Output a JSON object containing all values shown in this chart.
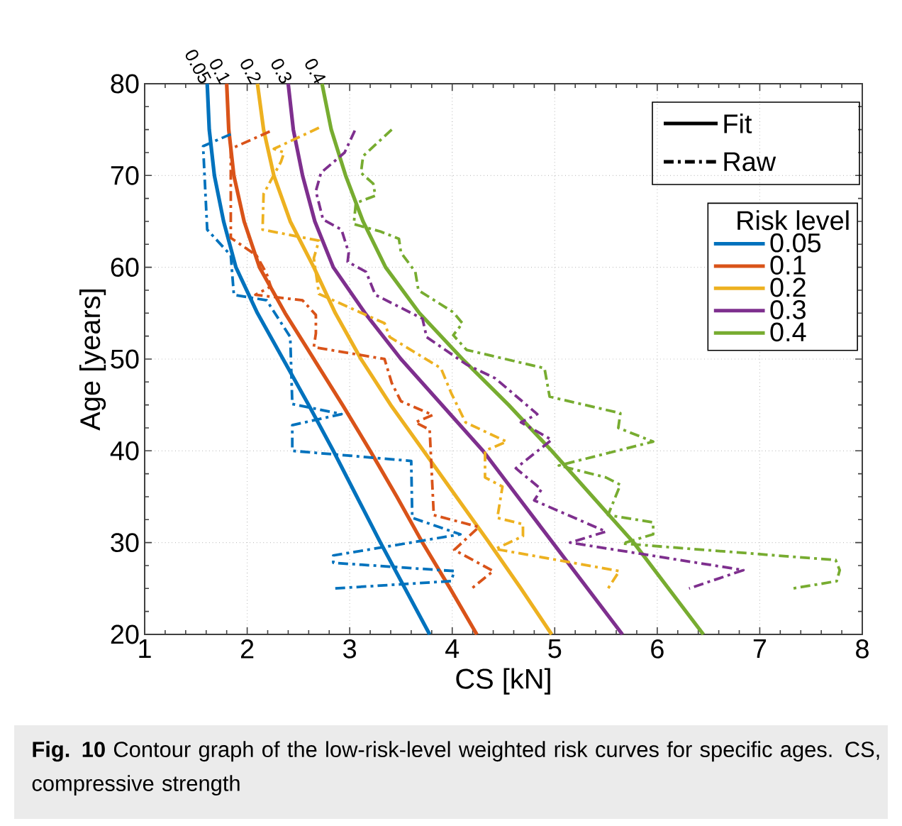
{
  "chart_data": {
    "type": "line",
    "xlabel": "CS [kN]",
    "ylabel": "Age [years]",
    "legend_title": "Risk level",
    "xlim": [
      1,
      8
    ],
    "ylim": [
      20,
      80
    ],
    "xticks": [
      1,
      2,
      3,
      4,
      5,
      6,
      7,
      8
    ],
    "yticks": [
      20,
      30,
      40,
      50,
      60,
      70,
      80
    ],
    "grid": true,
    "legend": "top right",
    "annotations": [
      "Fit",
      "Raw",
      "**Fig. 10** Contour graph of the low-risk-level weighted risk curves for specific ages. CS, compressive strength"
    ],
    "series": [
      {
        "name": "0.05",
        "color": "#0072bd",
        "line_style": "solid",
        "x": [
          1.61,
          1.63,
          1.68,
          1.77,
          1.89,
          2.1,
          2.35,
          2.6,
          2.84,
          3.07,
          3.3,
          3.54,
          3.78
        ],
        "values": [
          80,
          75,
          70,
          65,
          60,
          55,
          50,
          45,
          40,
          35,
          30,
          25,
          20
        ]
      },
      {
        "name": "0.1",
        "color": "#d95319",
        "line_style": "solid",
        "x": [
          1.8,
          1.82,
          1.87,
          1.97,
          2.12,
          2.37,
          2.65,
          2.93,
          3.2,
          3.46,
          3.71,
          3.98,
          4.24
        ],
        "values": [
          80,
          75,
          70,
          65,
          60,
          55,
          50,
          45,
          40,
          35,
          30,
          25,
          20
        ]
      },
      {
        "name": "0.2",
        "color": "#edb120",
        "line_style": "solid",
        "x": [
          2.1,
          2.16,
          2.26,
          2.42,
          2.65,
          2.86,
          3.11,
          3.4,
          3.72,
          4.04,
          4.36,
          4.67,
          4.97
        ],
        "values": [
          80,
          75,
          70,
          65,
          60,
          55,
          50,
          45,
          40,
          35,
          30,
          25,
          20
        ]
      },
      {
        "name": "0.3",
        "color": "#7e2f8e",
        "line_style": "solid",
        "x": [
          2.4,
          2.45,
          2.54,
          2.66,
          2.84,
          3.15,
          3.5,
          3.9,
          4.3,
          4.64,
          4.98,
          5.32,
          5.66
        ],
        "values": [
          80,
          75,
          70,
          65,
          60,
          55,
          50,
          45,
          40,
          35,
          30,
          25,
          20
        ]
      },
      {
        "name": "0.4",
        "color": "#77ac30",
        "line_style": "solid",
        "x": [
          2.73,
          2.82,
          2.96,
          3.13,
          3.35,
          3.68,
          4.1,
          4.55,
          4.97,
          5.37,
          5.77,
          6.11,
          6.45
        ],
        "values": [
          80,
          75,
          70,
          65,
          60,
          55,
          50,
          45,
          40,
          35,
          30,
          25,
          20
        ]
      },
      {
        "color": "#0072bd",
        "line_style": "dashdot",
        "x": [
          1.84,
          1.57,
          1.61,
          1.84,
          1.87,
          2.19,
          2.42,
          2.44,
          2.92,
          2.44,
          2.44,
          3.6,
          3.61,
          4.08,
          2.84,
          2.84,
          4.02,
          3.99,
          2.84
        ],
        "values": [
          74.5,
          73.2,
          64.1,
          61.3,
          57.0,
          56.4,
          52.4,
          45.1,
          44.0,
          42.8,
          40.0,
          38.9,
          32.7,
          30.9,
          28.6,
          27.8,
          26.9,
          25.8,
          25.0
        ]
      },
      {
        "color": "#d95319",
        "line_style": "dashdot",
        "x": [
          2.22,
          1.84,
          1.84,
          2.09,
          2.19,
          2.23,
          2.08,
          2.54,
          2.67,
          2.67,
          2.65,
          3.34,
          3.41,
          3.5,
          3.81,
          3.64,
          3.78,
          3.82,
          4.26,
          4.02,
          4.4,
          4.19
        ],
        "values": [
          74.8,
          72.9,
          63.2,
          61.3,
          59.3,
          57.9,
          57.0,
          56.4,
          54.8,
          52.8,
          51.3,
          50.0,
          47.4,
          45.4,
          43.9,
          43.1,
          42.3,
          33.0,
          31.7,
          29.2,
          26.9,
          25.0
        ]
      },
      {
        "color": "#edb120",
        "line_style": "dashdot",
        "x": [
          2.7,
          2.26,
          2.36,
          2.33,
          2.16,
          2.15,
          2.7,
          2.65,
          2.7,
          3.34,
          3.39,
          3.89,
          3.99,
          4.13,
          4.53,
          4.32,
          4.32,
          4.49,
          4.44,
          4.69,
          4.69,
          4.42,
          5.63,
          5.52
        ],
        "values": [
          75.2,
          72.9,
          72.5,
          71.5,
          68.0,
          64.1,
          62.9,
          61.0,
          57.1,
          53.9,
          52.4,
          49.0,
          46.3,
          43.1,
          41.0,
          40.0,
          37.1,
          36.1,
          32.7,
          32.0,
          30.7,
          29.3,
          26.9,
          25.0
        ]
      },
      {
        "color": "#7e2f8e",
        "line_style": "dashdot",
        "x": [
          3.05,
          2.95,
          2.72,
          2.67,
          2.74,
          2.92,
          2.99,
          2.98,
          3.16,
          3.25,
          3.71,
          3.75,
          4.14,
          4.42,
          4.83,
          4.67,
          4.97,
          4.62,
          4.87,
          4.8,
          5.5,
          5.15,
          6.84,
          6.31
        ],
        "values": [
          74.9,
          72.5,
          70.3,
          68.3,
          65.2,
          64.1,
          61.6,
          60.6,
          59.5,
          57.0,
          54.4,
          52.4,
          49.4,
          47.9,
          44.0,
          43.1,
          41.2,
          38.1,
          35.8,
          34.6,
          31.2,
          30.0,
          27.0,
          25.0
        ]
      },
      {
        "color": "#77ac30",
        "line_style": "dashdot",
        "x": [
          3.41,
          3.13,
          3.11,
          3.23,
          3.25,
          3.06,
          3.04,
          3.3,
          3.48,
          3.5,
          3.64,
          3.67,
          4.01,
          4.1,
          4.01,
          4.14,
          4.9,
          4.95,
          5.64,
          5.62,
          5.96,
          5.04,
          5.5,
          5.64,
          5.52,
          5.96,
          5.96,
          5.66,
          7.74,
          7.78,
          7.75,
          7.32
        ],
        "values": [
          75.0,
          72.1,
          70.3,
          69.1,
          67.8,
          67.0,
          64.7,
          63.9,
          63.1,
          61.6,
          59.5,
          57.5,
          55.1,
          53.9,
          52.6,
          51.0,
          49.0,
          45.9,
          44.1,
          42.5,
          41.0,
          38.4,
          37.1,
          36.3,
          33.0,
          32.2,
          30.9,
          29.9,
          28.1,
          27.0,
          25.8,
          25.0
        ]
      }
    ]
  }
}
